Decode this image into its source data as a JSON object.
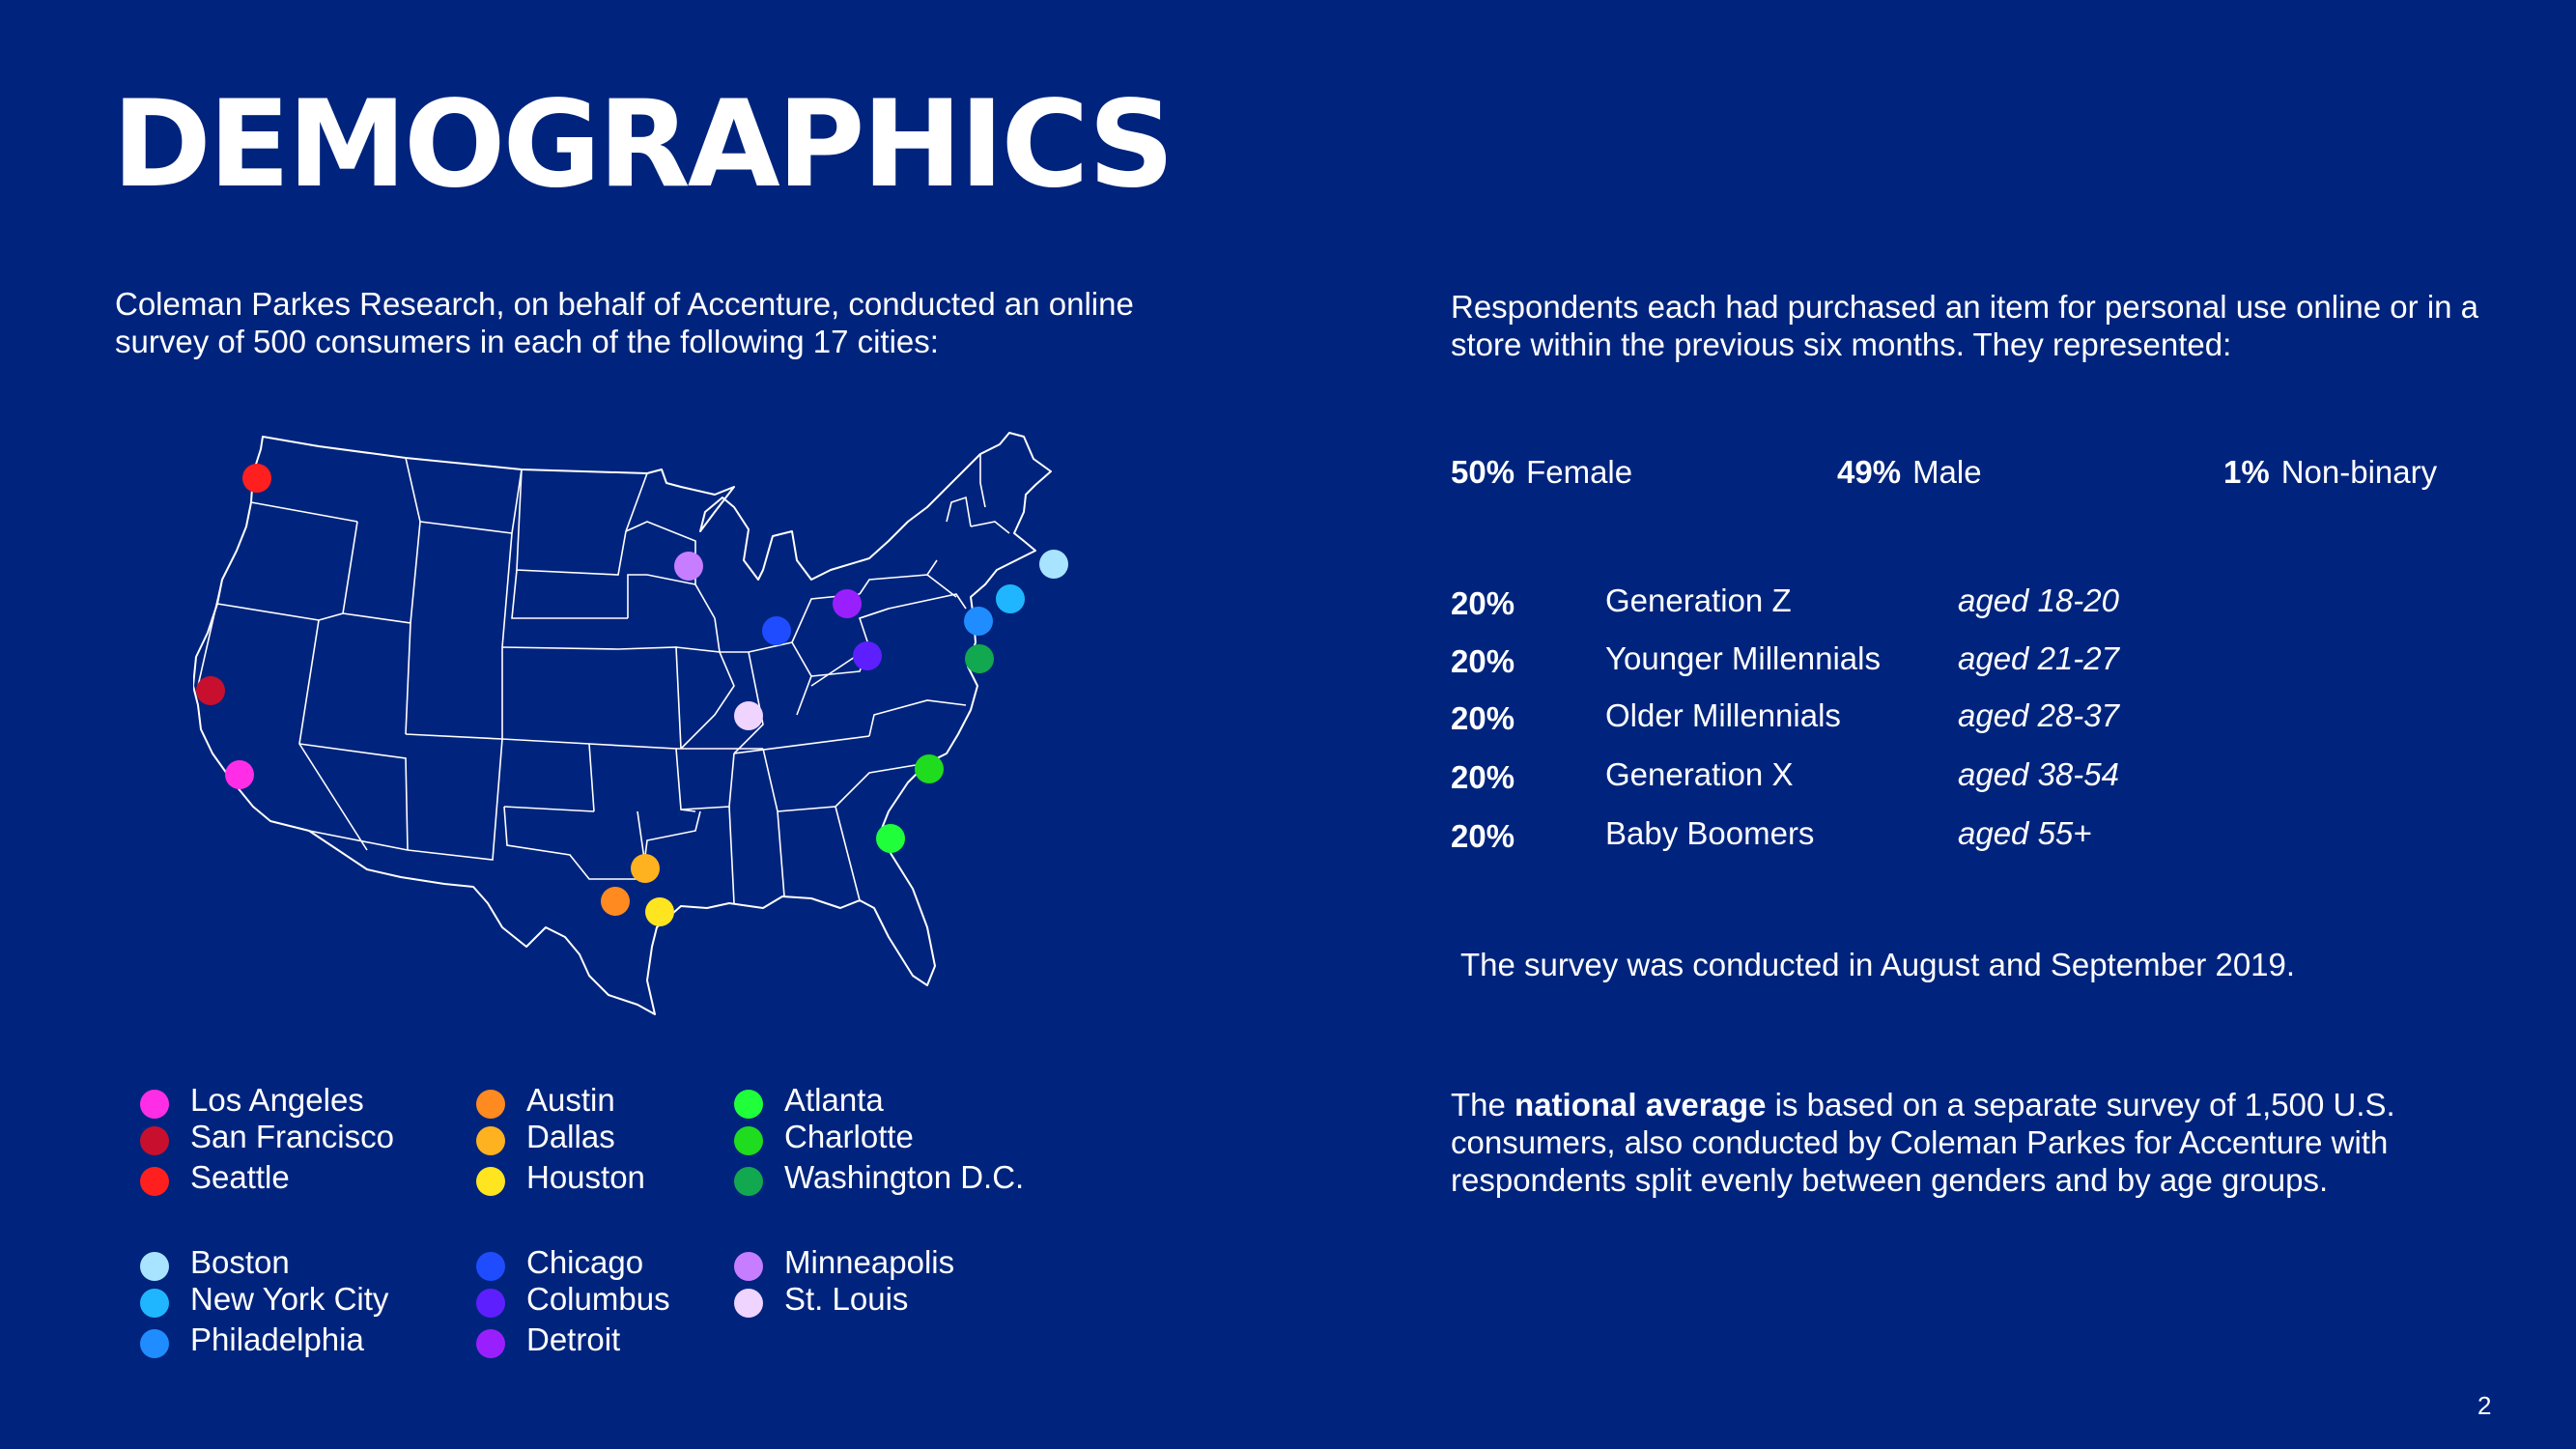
{
  "title": "DEMOGRAPHICS",
  "intro": "Coleman Parkes Research, on behalf of Accenture, conducted an online survey of 500 consumers in each of the following 17 cities:",
  "respondents": "Respondents each had purchased an item for personal use online or in a store within the previous six months. They represented:",
  "gender": [
    {
      "pct": "50%",
      "label": "Female"
    },
    {
      "pct": "49%",
      "label": "Male"
    },
    {
      "pct": "1%",
      "label": "Non-binary"
    }
  ],
  "age_groups": [
    {
      "pct": "20%",
      "name": "Generation Z",
      "range": "aged 18-20"
    },
    {
      "pct": "20%",
      "name": "Younger Millennials",
      "range": "aged 21-27"
    },
    {
      "pct": "20%",
      "name": "Older Millennials",
      "range": "aged 28-37"
    },
    {
      "pct": "20%",
      "name": "Generation X",
      "range": "aged 38-54"
    },
    {
      "pct": "20%",
      "name": "Baby Boomers",
      "range": "aged 55+"
    }
  ],
  "survey_date": "The survey was conducted in August and September 2019.",
  "national": {
    "prefix": "The ",
    "bold": "national average",
    "suffix": " is based on a separate survey of 1,500 U.S. consumers, also conducted by Coleman Parkes for Accenture with respondents split evenly between genders and by age groups."
  },
  "page_number": "2",
  "cities": [
    {
      "name": "Los Angeles",
      "color": "#ff2ee6"
    },
    {
      "name": "San Francisco",
      "color": "#c8102e"
    },
    {
      "name": "Seattle",
      "color": "#ff1f1f"
    },
    {
      "name": "Austin",
      "color": "#ff8a1f"
    },
    {
      "name": "Dallas",
      "color": "#ffb21f"
    },
    {
      "name": "Houston",
      "color": "#ffe51f"
    },
    {
      "name": "Atlanta",
      "color": "#1fff3a"
    },
    {
      "name": "Charlotte",
      "color": "#1fdc1f"
    },
    {
      "name": "Washington D.C.",
      "color": "#12a84f"
    },
    {
      "name": "Boston",
      "color": "#a8e4ff"
    },
    {
      "name": "New York City",
      "color": "#1fb6ff"
    },
    {
      "name": "Philadelphia",
      "color": "#1f8cff"
    },
    {
      "name": "Chicago",
      "color": "#1f4cff"
    },
    {
      "name": "Columbus",
      "color": "#5e1fff"
    },
    {
      "name": "Detroit",
      "color": "#9a1fff"
    },
    {
      "name": "Minneapolis",
      "color": "#c77dff"
    },
    {
      "name": "St. Louis",
      "color": "#eed4ff"
    }
  ]
}
